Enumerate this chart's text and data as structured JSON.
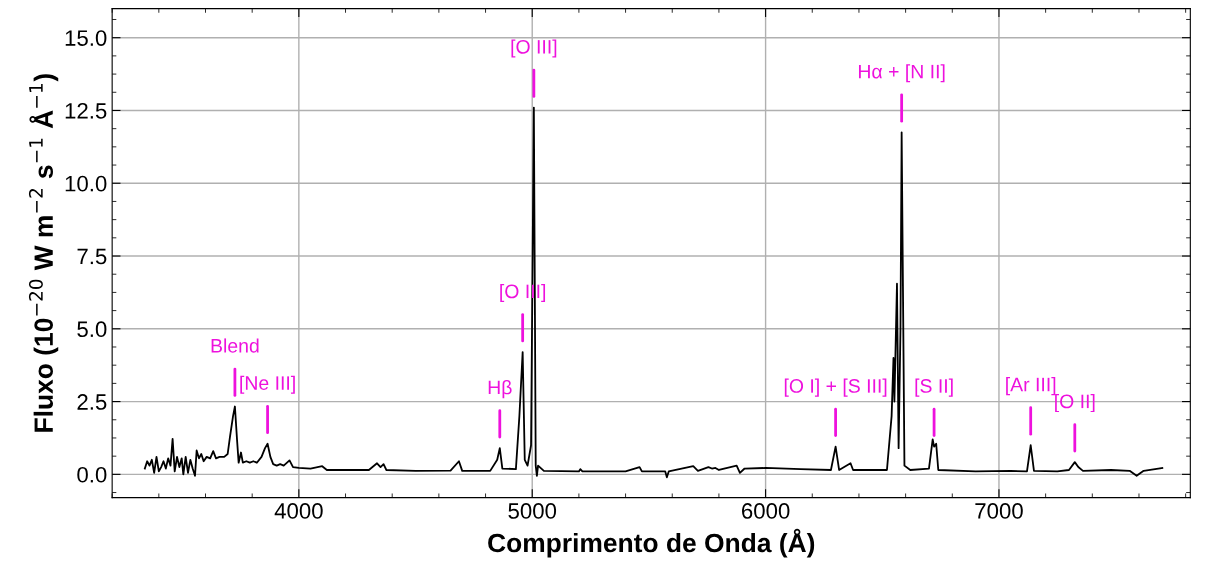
{
  "chart_data": {
    "type": "line",
    "xlabel": "Comprimento de Onda (Å)",
    "ylabel": "Fluxo (10$^{−20}$ W m$^{−2}$ s$^{−1}$ Å$^{−1}$)",
    "xlim": [
      3200,
      7820
    ],
    "ylim": [
      -0.8,
      16
    ],
    "xticks": [
      4000,
      5000,
      6000,
      7000
    ],
    "yticks": [
      {
        "value": 0,
        "label": "0.0"
      },
      {
        "value": 2.5,
        "label": "2.5"
      },
      {
        "value": 5,
        "label": "5.0"
      },
      {
        "value": 7.5,
        "label": "7.5"
      },
      {
        "value": 10,
        "label": "10.0"
      },
      {
        "value": 12.5,
        "label": "12.5"
      },
      {
        "value": 15,
        "label": "15.0"
      }
    ],
    "grid": true,
    "marker": "none",
    "line_style": "solid",
    "series": [
      {
        "color": "#000000",
        "x": [
          3340,
          3350,
          3360,
          3370,
          3380,
          3390,
          3400,
          3410,
          3420,
          3430,
          3440,
          3450,
          3459,
          3468,
          3478,
          3488,
          3498,
          3505,
          3515,
          3525,
          3535,
          3545,
          3555,
          3562,
          3572,
          3582,
          3592,
          3605,
          3620,
          3633,
          3645,
          3660,
          3680,
          3695,
          3705,
          3718,
          3726,
          3735,
          3742,
          3752,
          3760,
          3775,
          3790,
          3805,
          3820,
          3840,
          3855,
          3866,
          3878,
          3890,
          3905,
          3920,
          3935,
          3960,
          3975,
          4000,
          4050,
          4100,
          4120,
          4200,
          4300,
          4335,
          4350,
          4363,
          4375,
          4500,
          4650,
          4686,
          4700,
          4820,
          4850,
          4861,
          4872,
          4930,
          4945,
          4959,
          4968,
          4980,
          4995,
          5007,
          5015,
          5020,
          5025,
          5050,
          5200,
          5206,
          5215,
          5400,
          5460,
          5470,
          5570,
          5577,
          5585,
          5690,
          5710,
          5755,
          5770,
          5785,
          5800,
          5876,
          5890,
          5910,
          6000,
          6150,
          6280,
          6300,
          6315,
          6364,
          6375,
          6520,
          6540,
          6548,
          6552,
          6563,
          6570,
          6578,
          6583,
          6595,
          6620,
          6700,
          6716,
          6722,
          6731,
          6740,
          6900,
          7050,
          7120,
          7136,
          7150,
          7250,
          7300,
          7325,
          7340,
          7360,
          7480,
          7560,
          7590,
          7620,
          7700
        ],
        "values": [
          0.2,
          0.45,
          0.3,
          0.5,
          0.05,
          0.6,
          0.1,
          0.25,
          0.45,
          0.2,
          0.55,
          0.3,
          1.22,
          0.1,
          0.6,
          0.25,
          0.55,
          0.0,
          0.6,
          0.05,
          0.5,
          0.2,
          -0.05,
          0.82,
          0.55,
          0.7,
          0.45,
          0.6,
          0.55,
          0.8,
          0.55,
          0.6,
          0.6,
          0.7,
          1.3,
          2.0,
          2.33,
          1.2,
          0.4,
          0.75,
          0.4,
          0.45,
          0.4,
          0.45,
          0.4,
          0.6,
          0.9,
          1.05,
          0.6,
          0.35,
          0.3,
          0.35,
          0.3,
          0.48,
          0.25,
          0.22,
          0.2,
          0.28,
          0.15,
          0.15,
          0.15,
          0.38,
          0.25,
          0.35,
          0.15,
          0.12,
          0.13,
          0.45,
          0.12,
          0.12,
          0.5,
          0.9,
          0.2,
          0.18,
          2.0,
          4.2,
          0.5,
          0.3,
          1.0,
          12.6,
          0.3,
          -0.05,
          0.3,
          0.12,
          0.1,
          0.18,
          0.1,
          0.1,
          0.25,
          0.1,
          0.1,
          -0.1,
          0.1,
          0.28,
          0.12,
          0.25,
          0.2,
          0.22,
          0.15,
          0.3,
          0.05,
          0.2,
          0.22,
          0.18,
          0.15,
          0.95,
          0.15,
          0.38,
          0.15,
          0.15,
          2.0,
          4.0,
          2.5,
          6.55,
          0.9,
          5.0,
          11.75,
          0.3,
          0.15,
          0.2,
          1.2,
          0.95,
          1.05,
          0.15,
          0.1,
          0.12,
          0.1,
          1.0,
          0.12,
          0.1,
          0.15,
          0.42,
          0.25,
          0.12,
          0.15,
          0.12,
          -0.05,
          0.12,
          0.22
        ]
      }
    ],
    "annotations": [
      {
        "text": "Blend",
        "x": 3726,
        "y": 2.33
      },
      {
        "text": "[Ne III]",
        "x": 3866,
        "y": 1.05
      },
      {
        "text": "Hβ",
        "x": 4861,
        "y": 0.9
      },
      {
        "text": "[O III]",
        "x": 4959,
        "y": 4.2
      },
      {
        "text": "[O III]",
        "x": 5007,
        "y": 12.6
      },
      {
        "text": "Hα + [N II]",
        "x": 6583,
        "y": 11.75
      },
      {
        "text": "[O I] + [S III]",
        "x": 6300,
        "y": 0.95
      },
      {
        "text": "[S II]",
        "x": 6722,
        "y": 0.95
      },
      {
        "text": "[Ar III]",
        "x": 7136,
        "y": 1.0
      },
      {
        "text": "[O II]",
        "x": 7325,
        "y": 0.42
      }
    ]
  }
}
